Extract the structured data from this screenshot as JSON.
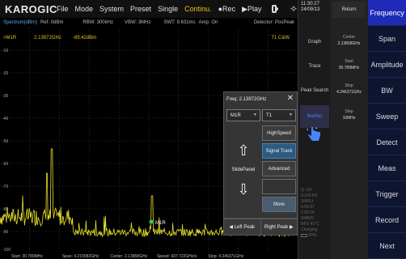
{
  "topbar": {
    "logo": "KAROGIC",
    "menu": [
      "File",
      "Mode",
      "System",
      "Preset",
      "Single",
      "Continu.",
      "●Rec",
      "▶Play"
    ]
  },
  "infobar": {
    "spectrum": "Spectrum(dBm)",
    "ref": "Ref: 0dBm",
    "rbw": "RBW: 300kHz",
    "vbw": "VBW: 3MHz",
    "swt": "SWT: 9.631ms",
    "amp": "Amp: On",
    "detector": "Detector: PosPeak"
  },
  "marker_readout": {
    "name": ">M1R",
    "freq": "2.13972GHz",
    "amp": "-89.42dBm",
    "trace": "T1 C&W"
  },
  "y_axis": [
    "-10",
    "-20",
    "-30",
    "-40",
    "-50",
    "-60",
    "-70",
    "-80",
    "-90",
    "-100"
  ],
  "bottombar": {
    "start": "Start: 30.789MHz",
    "span": "Span: 4.215582GHz",
    "center": "Center: 2.13858GHz",
    "speed": "Speed: 437.722GHz/s",
    "stop": "Stop: 4.246371GHz"
  },
  "plot_marker_label": "M1R",
  "panel": {
    "freq": "Freq: 2.13972GHz",
    "marker_select": "M1R",
    "trace_select": "T1",
    "buttons": [
      "HighSpeed",
      "Signal Track",
      "Advanced",
      "More"
    ],
    "slide_label": "SlidePanel",
    "left_peak": "◀ Left Peak",
    "right_peak": "Right Peak ▶"
  },
  "midcol": {
    "time": "11:30:27",
    "date": "24/09/13",
    "buttons": [
      "Graph",
      "Trace",
      "Peak Search",
      "Marker"
    ],
    "sysinfo": [
      "Q: U3",
      "0.200 R3",
      "3000Lt",
      "0.55:47",
      "2.55:24",
      "SHBI/5",
      "RFU 41°C",
      "Charging",
      "20%"
    ]
  },
  "params": {
    "return": "Return",
    "items": [
      {
        "label": "Center",
        "value": "2.13858GHz"
      },
      {
        "label": "Start",
        "value": "30.789MHz"
      },
      {
        "label": "Stop",
        "value": "4.246371GHz"
      },
      {
        "label": "Step",
        "value": "10MHz"
      }
    ]
  },
  "rightmenu": [
    "Frequency",
    "Span",
    "Amplitude",
    "BW",
    "Sweep",
    "Detect",
    "Meas",
    "Trigger",
    "Record",
    "Next"
  ],
  "colors": {
    "trace": "#e8e02a",
    "accent": "#1f2bb7",
    "marker_text": "#e6c21a"
  }
}
